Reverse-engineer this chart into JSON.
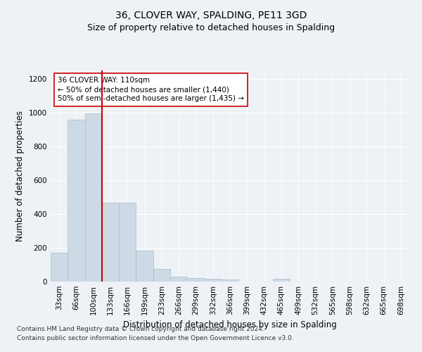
{
  "title": "36, CLOVER WAY, SPALDING, PE11 3GD",
  "subtitle": "Size of property relative to detached houses in Spalding",
  "xlabel": "Distribution of detached houses by size in Spalding",
  "ylabel": "Number of detached properties",
  "categories": [
    "33sqm",
    "66sqm",
    "100sqm",
    "133sqm",
    "166sqm",
    "199sqm",
    "233sqm",
    "266sqm",
    "299sqm",
    "332sqm",
    "366sqm",
    "399sqm",
    "432sqm",
    "465sqm",
    "499sqm",
    "532sqm",
    "565sqm",
    "598sqm",
    "632sqm",
    "665sqm",
    "698sqm"
  ],
  "values": [
    170,
    960,
    995,
    465,
    465,
    185,
    75,
    30,
    22,
    18,
    12,
    0,
    0,
    15,
    0,
    0,
    0,
    0,
    0,
    0,
    0
  ],
  "bar_color": "#cdd9e5",
  "bar_edge_color": "#aabccc",
  "vline_color": "#cc0000",
  "annotation_text": "36 CLOVER WAY: 110sqm\n← 50% of detached houses are smaller (1,440)\n50% of semi-detached houses are larger (1,435) →",
  "annotation_box_color": "white",
  "annotation_box_edge_color": "#cc0000",
  "ylim": [
    0,
    1250
  ],
  "yticks": [
    0,
    200,
    400,
    600,
    800,
    1000,
    1200
  ],
  "footer_line1": "Contains HM Land Registry data © Crown copyright and database right 2024.",
  "footer_line2": "Contains public sector information licensed under the Open Government Licence v3.0.",
  "bg_color": "#eef2f6",
  "plot_bg_color": "#eef2f6",
  "title_fontsize": 10,
  "subtitle_fontsize": 9,
  "axis_label_fontsize": 8.5,
  "tick_fontsize": 7.5,
  "annotation_fontsize": 7.5,
  "footer_fontsize": 6.5,
  "grid_color": "#ffffff"
}
